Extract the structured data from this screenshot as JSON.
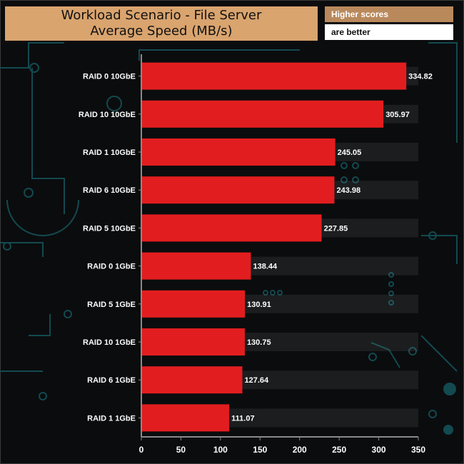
{
  "header": {
    "title_line1": "Workload Scenario - File Server",
    "title_line2": "Average Speed (MB/s)",
    "note_line1": "Higher scores",
    "note_line2": "are better"
  },
  "colors": {
    "bar": "#e21d1f",
    "title_bg": "#d9a46e",
    "note_bg": "#b9895c",
    "axis": "#8a8a8a",
    "label": "#ffffff"
  },
  "chart_data": {
    "type": "bar",
    "orientation": "horizontal",
    "title": "Workload Scenario - File Server Average Speed (MB/s)",
    "xlabel": "",
    "ylabel": "",
    "xlim": [
      0,
      350
    ],
    "xticks": [
      0,
      50,
      100,
      150,
      200,
      250,
      300,
      350
    ],
    "categories": [
      "RAID 0 10GbE",
      "RAID 10 10GbE",
      "RAID 1 10GbE",
      "RAID 6 10GbE",
      "RAID 5 10GbE",
      "RAID 0 1GbE",
      "RAID 5 1GbE",
      "RAID 10 1GbE",
      "RAID 6 1GbE",
      "RAID 1 1GbE"
    ],
    "values": [
      334.82,
      305.97,
      245.05,
      243.98,
      227.85,
      138.44,
      130.91,
      130.75,
      127.64,
      111.07
    ],
    "value_labels": [
      "334.82",
      "305.97",
      "245.05",
      "243.98",
      "227.85",
      "138.44",
      "130.91",
      "130.75",
      "127.64",
      "111.07"
    ],
    "grid": false
  }
}
